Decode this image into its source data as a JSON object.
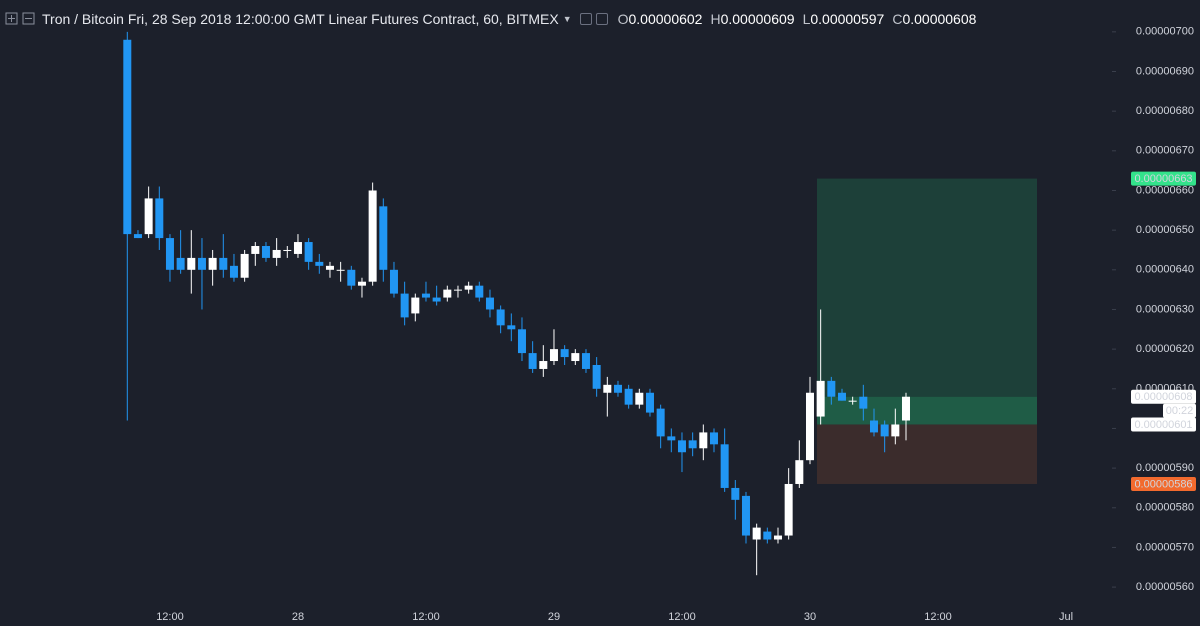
{
  "chart_data": {
    "type": "candlestick",
    "title": "Tron / Bitcoin Fri, 28 Sep 2018 12:00:00 GMT Linear Futures Contract, 60, BITMEX",
    "ohlc_legend": [
      {
        "key": "O",
        "value": "0.00000602"
      },
      {
        "key": "H",
        "value": "0.00000609"
      },
      {
        "key": "L",
        "value": "0.00000597"
      },
      {
        "key": "C",
        "value": "0.00000608"
      }
    ],
    "categories": [
      null,
      null,
      null,
      null,
      "12:00",
      null,
      null,
      null,
      null,
      null,
      null,
      null,
      null,
      null,
      null,
      null,
      "28",
      null,
      null,
      null,
      null,
      null,
      null,
      null,
      null,
      null,
      null,
      null,
      "12:00",
      null,
      null,
      null,
      null,
      null,
      null,
      null,
      null,
      null,
      null,
      null,
      "29",
      null,
      null,
      null,
      null,
      null,
      null,
      null,
      null,
      null,
      null,
      null,
      "12:00",
      null,
      null,
      null,
      null,
      null,
      null,
      null,
      null,
      null,
      null,
      null,
      "30",
      null,
      null,
      null,
      null,
      null,
      null,
      null,
      null,
      null,
      null,
      null,
      "12:00",
      null,
      null,
      null,
      null,
      null,
      null,
      null,
      null,
      null,
      null,
      null,
      "Jul"
    ],
    "open": [
      6.98e-06,
      6.49e-06,
      6.49e-06,
      6.58e-06,
      6.48e-06,
      6.43e-06,
      6.4e-06,
      6.43e-06,
      6.4e-06,
      6.43e-06,
      6.41e-06,
      6.38e-06,
      6.44e-06,
      6.46e-06,
      6.43e-06,
      6.45e-06,
      6.44e-06,
      6.47e-06,
      6.42e-06,
      6.4e-06,
      6.4e-06,
      6.4e-06,
      6.36e-06,
      6.37e-06,
      6.56e-06,
      6.4e-06,
      6.34e-06,
      6.29e-06,
      6.34e-06,
      6.33e-06,
      6.33e-06,
      6.35e-06,
      6.35e-06,
      6.36e-06,
      6.33e-06,
      6.3e-06,
      6.26e-06,
      6.25e-06,
      6.19e-06,
      6.15e-06,
      6.17e-06,
      6.2e-06,
      6.17e-06,
      6.19e-06,
      6.16e-06,
      6.09e-06,
      6.11e-06,
      6.1e-06,
      6.06e-06,
      6.09e-06,
      6.05e-06,
      5.98e-06,
      5.97e-06,
      5.97e-06,
      5.95e-06,
      5.99e-06,
      5.96e-06,
      5.85e-06,
      5.83e-06,
      5.72e-06,
      5.74e-06,
      5.72e-06,
      5.73e-06,
      5.86e-06,
      5.92e-06,
      6.03e-06,
      6.12e-06,
      6.09e-06,
      6.07e-06,
      6.08e-06,
      6.02e-06,
      6.01e-06,
      5.98e-06,
      6.02e-06,
      null,
      null,
      null,
      null,
      null,
      null,
      null,
      null,
      null,
      null,
      null,
      null,
      null,
      null,
      null
    ],
    "high": [
      7e-06,
      6.5e-06,
      6.61e-06,
      6.61e-06,
      6.49e-06,
      6.5e-06,
      6.5e-06,
      6.48e-06,
      6.45e-06,
      6.49e-06,
      6.44e-06,
      6.45e-06,
      6.47e-06,
      6.47e-06,
      6.48e-06,
      6.46e-06,
      6.49e-06,
      6.48e-06,
      6.44e-06,
      6.42e-06,
      6.42e-06,
      6.41e-06,
      6.38e-06,
      6.62e-06,
      6.58e-06,
      6.42e-06,
      6.37e-06,
      6.34e-06,
      6.37e-06,
      6.36e-06,
      6.36e-06,
      6.36e-06,
      6.37e-06,
      6.37e-06,
      6.35e-06,
      6.31e-06,
      6.29e-06,
      6.28e-06,
      6.22e-06,
      6.21e-06,
      6.25e-06,
      6.21e-06,
      6.2e-06,
      6.2e-06,
      6.18e-06,
      6.13e-06,
      6.12e-06,
      6.11e-06,
      6.1e-06,
      6.1e-06,
      6.06e-06,
      6e-06,
      5.99e-06,
      5.99e-06,
      6.01e-06,
      6e-06,
      6e-06,
      5.87e-06,
      5.84e-06,
      5.76e-06,
      5.75e-06,
      5.75e-06,
      5.9e-06,
      5.97e-06,
      6.13e-06,
      6.3e-06,
      6.13e-06,
      6.1e-06,
      6.08e-06,
      6.11e-06,
      6.05e-06,
      6.02e-06,
      6.05e-06,
      6.09e-06,
      null,
      null,
      null,
      null,
      null,
      null,
      null,
      null,
      null,
      null,
      null,
      null,
      null,
      null,
      null
    ],
    "low": [
      6.02e-06,
      6.48e-06,
      6.48e-06,
      6.45e-06,
      6.37e-06,
      6.39e-06,
      6.34e-06,
      6.3e-06,
      6.36e-06,
      6.38e-06,
      6.37e-06,
      6.37e-06,
      6.41e-06,
      6.42e-06,
      6.41e-06,
      6.43e-06,
      6.43e-06,
      6.4e-06,
      6.39e-06,
      6.38e-06,
      6.37e-06,
      6.35e-06,
      6.33e-06,
      6.36e-06,
      6.37e-06,
      6.33e-06,
      6.26e-06,
      6.27e-06,
      6.32e-06,
      6.31e-06,
      6.32e-06,
      6.33e-06,
      6.34e-06,
      6.32e-06,
      6.28e-06,
      6.24e-06,
      6.22e-06,
      6.17e-06,
      6.14e-06,
      6.13e-06,
      6.16e-06,
      6.16e-06,
      6.16e-06,
      6.14e-06,
      6.08e-06,
      6.03e-06,
      6.08e-06,
      6.05e-06,
      6.05e-06,
      6.03e-06,
      5.95e-06,
      5.94e-06,
      5.89e-06,
      5.93e-06,
      5.92e-06,
      5.94e-06,
      5.84e-06,
      5.77e-06,
      5.71e-06,
      5.63e-06,
      5.71e-06,
      5.71e-06,
      5.72e-06,
      5.85e-06,
      5.91e-06,
      6.01e-06,
      6.06e-06,
      6.07e-06,
      6.06e-06,
      6.02e-06,
      5.98e-06,
      5.94e-06,
      5.96e-06,
      5.97e-06,
      null,
      null,
      null,
      null,
      null,
      null,
      null,
      null,
      null,
      null,
      null,
      null,
      null,
      null,
      null
    ],
    "close": [
      6.49e-06,
      6.48e-06,
      6.58e-06,
      6.48e-06,
      6.4e-06,
      6.4e-06,
      6.43e-06,
      6.4e-06,
      6.43e-06,
      6.4e-06,
      6.38e-06,
      6.44e-06,
      6.46e-06,
      6.43e-06,
      6.45e-06,
      6.45e-06,
      6.47e-06,
      6.42e-06,
      6.41e-06,
      6.41e-06,
      6.4e-06,
      6.36e-06,
      6.37e-06,
      6.6e-06,
      6.4e-06,
      6.34e-06,
      6.28e-06,
      6.33e-06,
      6.33e-06,
      6.32e-06,
      6.35e-06,
      6.35e-06,
      6.36e-06,
      6.33e-06,
      6.3e-06,
      6.26e-06,
      6.25e-06,
      6.19e-06,
      6.15e-06,
      6.17e-06,
      6.2e-06,
      6.18e-06,
      6.19e-06,
      6.15e-06,
      6.1e-06,
      6.11e-06,
      6.09e-06,
      6.06e-06,
      6.09e-06,
      6.04e-06,
      5.98e-06,
      5.97e-06,
      5.94e-06,
      5.95e-06,
      5.99e-06,
      5.96e-06,
      5.85e-06,
      5.82e-06,
      5.73e-06,
      5.75e-06,
      5.72e-06,
      5.73e-06,
      5.86e-06,
      5.92e-06,
      6.09e-06,
      6.12e-06,
      6.08e-06,
      6.07e-06,
      6.07e-06,
      6.05e-06,
      5.99e-06,
      5.98e-06,
      6.01e-06,
      6.08e-06,
      null,
      null,
      null,
      null,
      null,
      null,
      null,
      null,
      null,
      null,
      null,
      null,
      null,
      null,
      null
    ],
    "up_color": "#ffffff",
    "down_color": "#2196f3",
    "ylim": [
      5.57e-06,
      7.05e-06
    ],
    "yticks": [
      {
        "value": 5.6e-06,
        "label": "0.00000560"
      },
      {
        "value": 5.7e-06,
        "label": "0.00000570"
      },
      {
        "value": 5.8e-06,
        "label": "0.00000580"
      },
      {
        "value": 5.9e-06,
        "label": "0.00000590"
      },
      {
        "value": 6e-06,
        "label": "0.00000600"
      },
      {
        "value": 6.1e-06,
        "label": "0.00000610"
      },
      {
        "value": 6.2e-06,
        "label": "0.00000620"
      },
      {
        "value": 6.3e-06,
        "label": "0.00000630"
      },
      {
        "value": 6.4e-06,
        "label": "0.00000640"
      },
      {
        "value": 6.5e-06,
        "label": "0.00000650"
      },
      {
        "value": 6.6e-06,
        "label": "0.00000660"
      },
      {
        "value": 6.7e-06,
        "label": "0.00000670"
      },
      {
        "value": 6.8e-06,
        "label": "0.00000680"
      },
      {
        "value": 6.9e-06,
        "label": "0.00000690"
      },
      {
        "value": 7e-06,
        "label": "0.00000700"
      }
    ],
    "grid": false,
    "price_labels": [
      {
        "value": 6.63e-06,
        "label": "0.00000663",
        "color": "#33e38b",
        "text_color": "#131722"
      },
      {
        "value": 6.08e-06,
        "label": "0.00000608",
        "color": "#ffffff",
        "text_color": "#131722"
      },
      {
        "value": 6.01e-06,
        "label": "0.00000601",
        "color": "#ffffff",
        "text_color": "#131722"
      },
      {
        "value": 5.86e-06,
        "label": "0.00000586",
        "color": "#f26a2e",
        "text_color": "#ffffff"
      }
    ],
    "countdown": "00:22",
    "zone_colors": [
      "#1d4039",
      "#1f5c46",
      "#3b2c2c"
    ]
  }
}
